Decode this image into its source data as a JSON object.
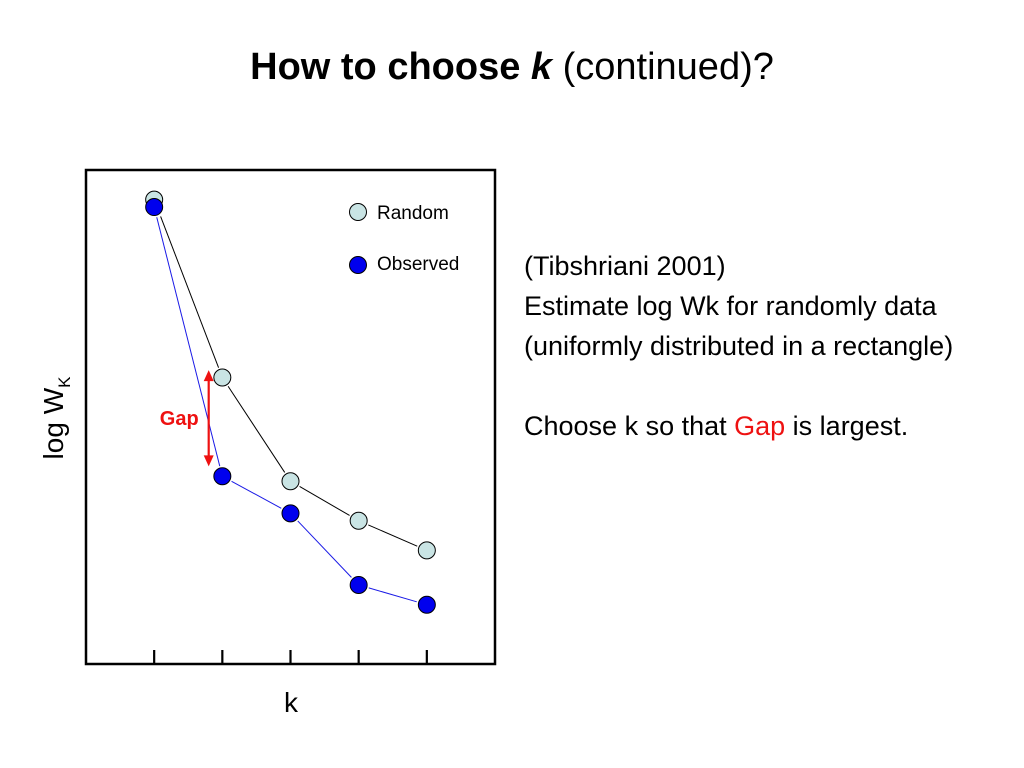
{
  "slide": {
    "title_bold": "How to choose ",
    "title_var": "k",
    "title_rest": " (continued)?"
  },
  "text": {
    "citation": "(Tibshriani 2001)",
    "line1": "Estimate log Wk for randomly data (uniformly distributed in a rectangle)",
    "line2_pre": "Choose k so that ",
    "line2_highlight": "Gap",
    "line2_post": " is largest."
  },
  "colors": {
    "random_fill": "#c9e4e4",
    "observed_fill": "#0000ee",
    "random_line": "#000000",
    "observed_line": "#1a1ae6",
    "gap": "#ee1111"
  },
  "chart_data": {
    "type": "line",
    "xlabel": "k",
    "ylabel": "log W",
    "ylabel_sub": "K",
    "x": [
      1,
      2,
      3,
      4,
      5
    ],
    "xlim": [
      0,
      6
    ],
    "ylim": [
      0,
      10
    ],
    "series": [
      {
        "name": "Random",
        "values": [
          9.4,
          5.8,
          3.7,
          2.9,
          2.3
        ]
      },
      {
        "name": "Observed",
        "values": [
          9.25,
          3.8,
          3.05,
          1.6,
          1.2
        ]
      }
    ],
    "annotation": {
      "label": "Gap",
      "x": 1.8,
      "y_top": 5.95,
      "y_bottom": 4.0
    },
    "legend_position": "top-right",
    "grid": false
  }
}
